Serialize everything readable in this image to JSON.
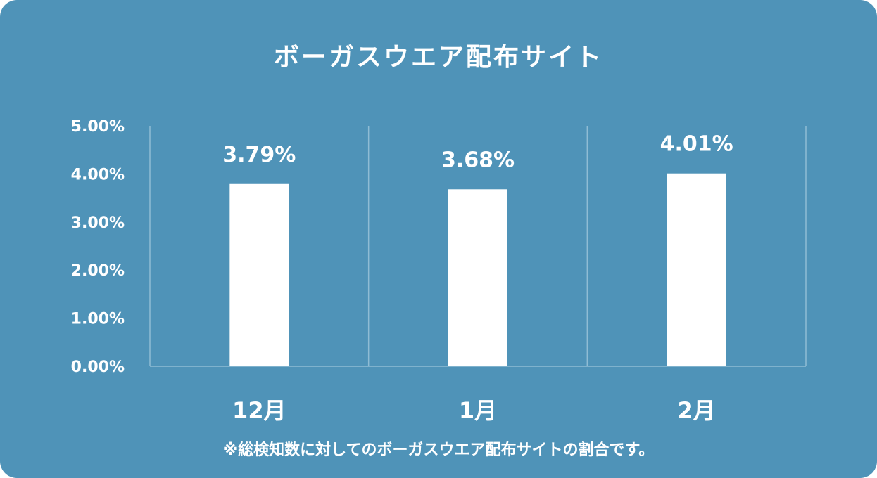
{
  "chart_data": {
    "type": "bar",
    "title": "ボーガスウエア配布サイト",
    "categories": [
      "12月",
      "1月",
      "2月"
    ],
    "values": [
      3.79,
      3.68,
      4.01
    ],
    "value_labels": [
      "3.79%",
      "3.68%",
      "4.01%"
    ],
    "yticks": [
      "0.00%",
      "1.00%",
      "2.00%",
      "3.00%",
      "4.00%",
      "5.00%"
    ],
    "ylim": [
      0,
      5
    ],
    "xlabel": "",
    "ylabel": "",
    "grid": "vertical-category-separators",
    "footnote": "※総検知数に対してのボーガスウエア配布サイトの割合です。"
  },
  "colors": {
    "background": "#4f93b8",
    "bar": "#ffffff",
    "grid": "#8fbcd4",
    "text": "#ffffff"
  }
}
